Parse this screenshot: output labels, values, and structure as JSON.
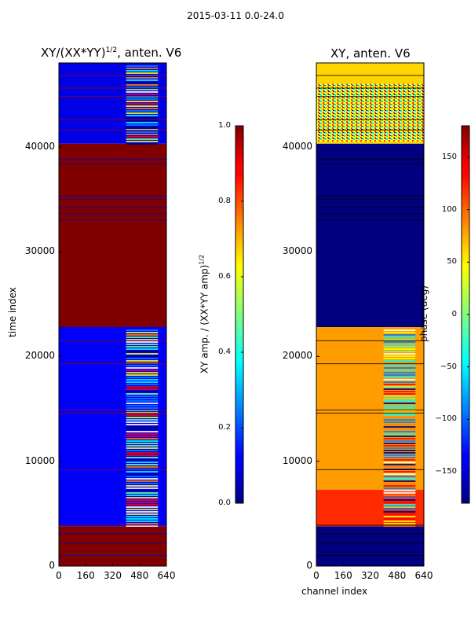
{
  "chart_data": [
    {
      "type": "heatmap",
      "suptitle": "2015-03-11 0.0-24.0",
      "title": "XY/(XX*YY)",
      "title_sup": "1/2",
      "title_suffix": ", anten. V6",
      "xlabel": "",
      "ylabel": "time index",
      "xlim": [
        0,
        640
      ],
      "ylim": [
        0,
        48000
      ],
      "xticks": [
        "0",
        "160",
        "320",
        "480",
        "640"
      ],
      "yticks": [
        "0",
        "10000",
        "20000",
        "30000",
        "40000"
      ],
      "colorbar": {
        "label": "XY amp. / (XX*YY amp)",
        "label_sup": "1/2",
        "range": [
          0.0,
          1.0
        ],
        "ticks": [
          "0.0",
          "0.2",
          "0.4",
          "0.6",
          "0.8",
          "1.0"
        ],
        "colormap": "jet"
      },
      "regions": [
        {
          "t0": 0,
          "t1": 3800,
          "value": 1.0
        },
        {
          "t0": 3800,
          "t1": 22800,
          "value": 0.12
        },
        {
          "t0": 22800,
          "t1": 40300,
          "value": 1.0
        },
        {
          "t0": 40300,
          "t1": 48000,
          "value": 0.1
        }
      ]
    },
    {
      "type": "heatmap",
      "title": "XY, anten. V6",
      "xlabel": "channel index",
      "ylabel": "",
      "xlim": [
        0,
        640
      ],
      "ylim": [
        0,
        48000
      ],
      "xticks": [
        "0",
        "160",
        "320",
        "480",
        "640"
      ],
      "yticks": [
        "0",
        "10000",
        "20000",
        "30000",
        "40000"
      ],
      "colorbar": {
        "label": "phase (deg)",
        "range": [
          -180,
          180
        ],
        "ticks": [
          "−150",
          "−100",
          "−50",
          "0",
          "50",
          "100",
          "150"
        ],
        "colormap": "jet"
      },
      "regions": [
        {
          "t0": 0,
          "t1": 3800,
          "value": -180
        },
        {
          "t0": 3800,
          "t1": 7300,
          "value": 120
        },
        {
          "t0": 7300,
          "t1": 22800,
          "value": 80
        },
        {
          "t0": 22800,
          "t1": 40300,
          "value": -180
        },
        {
          "t0": 40300,
          "t1": 48000,
          "value": 60
        }
      ]
    }
  ]
}
